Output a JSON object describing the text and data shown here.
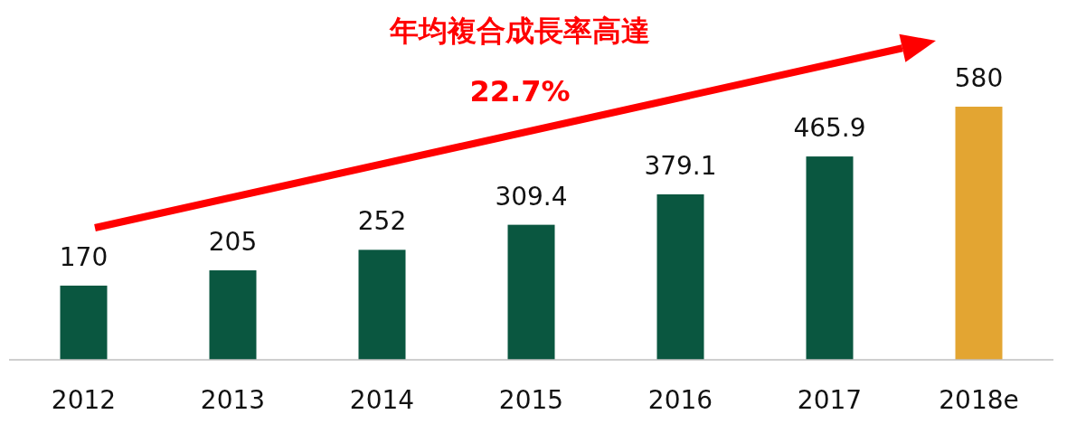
{
  "chart_data": {
    "type": "bar",
    "categories": [
      "2012",
      "2013",
      "2014",
      "2015",
      "2016",
      "2017",
      "2018e"
    ],
    "values": [
      170,
      205,
      252,
      309.4,
      379.1,
      465.9,
      580
    ],
    "colors": [
      "#0a5740",
      "#0a5740",
      "#0a5740",
      "#0a5740",
      "#0a5740",
      "#0a5740",
      "#e3a532"
    ],
    "data_labels": true,
    "annotations": [
      "年均複合成長率高達",
      "22.7%"
    ]
  }
}
